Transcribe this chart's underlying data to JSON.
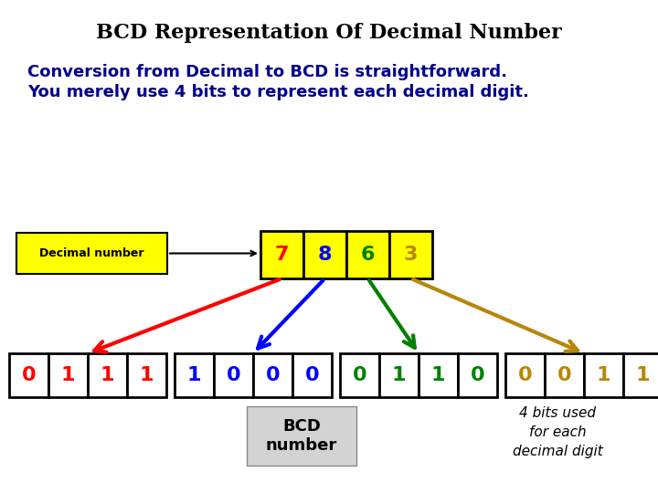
{
  "title": "BCD Representation Of Decimal Number",
  "subtitle_line1": "Conversion from Decimal to BCD is straightforward.",
  "subtitle_line2": "You merely use 4 bits to represent each decimal digit.",
  "decimal_label": "Decimal number",
  "decimal_digits": [
    "7",
    "8",
    "6",
    "3"
  ],
  "decimal_colors": [
    "red",
    "blue",
    "green",
    "#b8860b"
  ],
  "decimal_bg": "#ffff00",
  "bcd_groups": [
    [
      "0",
      "1",
      "1",
      "1"
    ],
    [
      "1",
      "0",
      "0",
      "0"
    ],
    [
      "0",
      "1",
      "1",
      "0"
    ],
    [
      "0",
      "0",
      "1",
      "1"
    ]
  ],
  "bcd_colors": [
    "red",
    "blue",
    "green",
    "#b8860b"
  ],
  "bcd_label": "BCD\nnumber",
  "bcd_label_bg": "#d3d3d3",
  "bits_label": "4 bits used\nfor each\ndecimal digit",
  "arrow_colors": [
    "red",
    "blue",
    "green",
    "#b8860b"
  ],
  "bg_color": "#ffffff",
  "title_fontsize": 16,
  "subtitle_fontsize": 13,
  "title_color": "#000000",
  "subtitle_color": "#00008b"
}
